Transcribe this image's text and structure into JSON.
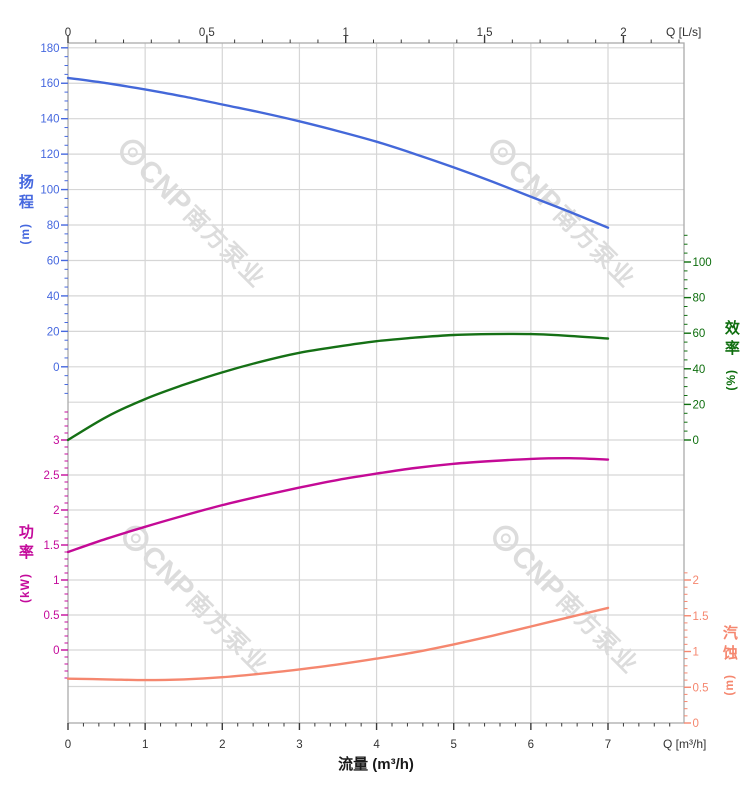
{
  "watermark": {
    "brand": "CNP",
    "company": "南方泵业",
    "color": "#dcdcdc"
  },
  "axes": {
    "top": {
      "unit_label": "Q [L/s]",
      "ticks": [
        "0",
        "0.5",
        "1",
        "1.5",
        "2"
      ],
      "color": "#333333"
    },
    "bottom": {
      "title": "流量 (m³/h)",
      "unit_label": "Q [m³/h]",
      "ticks": [
        "0",
        "1",
        "2",
        "3",
        "4",
        "5",
        "6",
        "7"
      ],
      "color": "#333333"
    },
    "head": {
      "title": "扬程",
      "unit": "(m)",
      "ticks": [
        "180",
        "160",
        "140",
        "120",
        "100",
        "80",
        "60",
        "40",
        "20",
        "0"
      ],
      "color": "#4668df"
    },
    "power": {
      "title": "功率",
      "unit": "(kW)",
      "ticks": [
        "3",
        "2.5",
        "2",
        "1.5",
        "1",
        "0.5",
        "0"
      ],
      "color": "#c40a9b"
    },
    "eff": {
      "title": "效率",
      "unit": "(%)",
      "ticks": [
        "100",
        "80",
        "60",
        "40",
        "20",
        "0"
      ],
      "color": "#0e6e0e"
    },
    "npsh": {
      "title": "汽蚀",
      "unit": "(m)",
      "ticks": [
        "2",
        "1.5",
        "1",
        "0.5",
        "0"
      ],
      "color": "#f5876f"
    }
  },
  "chart_data": {
    "type": "line",
    "title": "",
    "xlabel": "流量 (m³/h)",
    "x_axis": {
      "label": "流量 (m³/h)",
      "unit_label": "Q [m³/h]",
      "range": [
        0,
        8
      ],
      "labeled_to": 7,
      "secondary_top": {
        "label": "Q [L/s]",
        "range": [
          0,
          2.2
        ],
        "labeled_to": 2
      }
    },
    "y_axes": {
      "head": {
        "label": "扬程 (m)",
        "range": [
          0,
          180
        ],
        "tick_step": 20,
        "side": "left",
        "color": "#4668df"
      },
      "power": {
        "label": "功率 (kW)",
        "range": [
          0,
          3
        ],
        "tick_step": 0.5,
        "side": "left",
        "color": "#c40a9b"
      },
      "eff": {
        "label": "效率 (%)",
        "range": [
          0,
          100
        ],
        "tick_step": 20,
        "side": "right",
        "color": "#0e6e0e"
      },
      "npsh": {
        "label": "汽蚀 (m)",
        "range": [
          0,
          2
        ],
        "tick_step": 0.5,
        "side": "right",
        "color": "#f5876f"
      }
    },
    "grid": true,
    "legend": "none",
    "x_m3h": [
      0,
      0.5,
      1,
      1.5,
      2,
      2.5,
      3,
      3.5,
      4,
      4.5,
      5,
      5.5,
      6,
      6.5,
      7
    ],
    "series": [
      {
        "name": "扬程 H (m)",
        "axis": "head",
        "color": "#4468d9",
        "values": [
          163,
          160,
          156.5,
          152.5,
          148,
          143.5,
          138.5,
          133,
          127,
          120,
          112.5,
          104.5,
          96,
          87.5,
          78.5
        ]
      },
      {
        "name": "效率 η (%)",
        "axis": "eff",
        "color": "#157015",
        "values": [
          0,
          13,
          23,
          31,
          38,
          44,
          49,
          52.5,
          55.5,
          57.5,
          59,
          59.5,
          59.5,
          58.5,
          57
        ]
      },
      {
        "name": "功率 P (kW)",
        "axis": "power",
        "color": "#c40a96",
        "values": [
          1.4,
          1.59,
          1.76,
          1.92,
          2.07,
          2.2,
          2.32,
          2.43,
          2.52,
          2.6,
          2.66,
          2.7,
          2.73,
          2.74,
          2.72
        ]
      },
      {
        "name": "汽蚀 NPSH (m)",
        "axis": "npsh",
        "color": "#f5876f",
        "values": [
          0.62,
          0.61,
          0.6,
          0.61,
          0.64,
          0.69,
          0.75,
          0.82,
          0.9,
          0.99,
          1.1,
          1.22,
          1.35,
          1.48,
          1.61
        ]
      }
    ]
  }
}
